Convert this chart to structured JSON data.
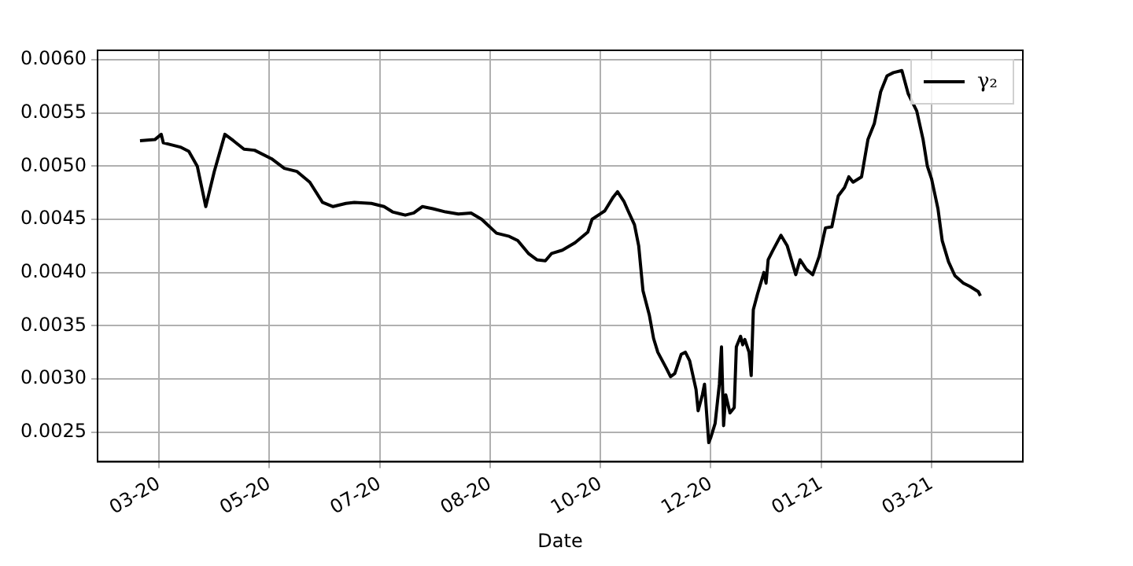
{
  "chart_data": {
    "type": "line",
    "xlabel": "Date",
    "x": [
      "2020-03-16",
      "2020-03-23",
      "2020-03-26",
      "2020-03-27",
      "2020-04-04",
      "2020-04-08",
      "2020-04-12",
      "2020-04-16",
      "2020-04-20",
      "2020-04-25",
      "2020-04-29",
      "2020-05-04",
      "2020-05-09",
      "2020-05-17",
      "2020-05-23",
      "2020-05-29",
      "2020-06-04",
      "2020-06-10",
      "2020-06-15",
      "2020-06-21",
      "2020-06-25",
      "2020-07-03",
      "2020-07-09",
      "2020-07-13",
      "2020-07-19",
      "2020-07-23",
      "2020-07-27",
      "2020-08-01",
      "2020-08-07",
      "2020-08-13",
      "2020-08-19",
      "2020-08-24",
      "2020-08-31",
      "2020-09-06",
      "2020-09-10",
      "2020-09-15",
      "2020-09-19",
      "2020-09-23",
      "2020-09-26",
      "2020-10-01",
      "2020-10-07",
      "2020-10-13",
      "2020-10-15",
      "2020-10-21",
      "2020-10-25",
      "2020-10-27",
      "2020-10-30",
      "2020-11-01",
      "2020-11-04",
      "2020-11-06",
      "2020-11-08",
      "2020-11-11",
      "2020-11-13",
      "2020-11-15",
      "2020-11-19",
      "2020-11-21",
      "2020-11-23",
      "2020-11-26",
      "2020-11-28",
      "2020-11-30",
      "2020-12-03",
      "2020-12-04",
      "2020-12-06",
      "2020-12-07",
      "2020-12-09",
      "2020-12-10",
      "2020-12-12",
      "2020-12-14",
      "2020-12-15",
      "2020-12-16",
      "2020-12-17",
      "2020-12-19",
      "2020-12-21",
      "2020-12-22",
      "2020-12-24",
      "2020-12-25",
      "2020-12-26",
      "2020-12-28",
      "2020-12-29",
      "2020-12-30",
      "2021-01-01",
      "2021-01-04",
      "2021-01-05",
      "2021-01-06",
      "2021-01-08",
      "2021-01-12",
      "2021-01-15",
      "2021-01-19",
      "2021-01-21",
      "2021-01-24",
      "2021-01-27",
      "2021-01-30",
      "2021-02-02",
      "2021-02-05",
      "2021-02-08",
      "2021-02-11",
      "2021-02-13",
      "2021-02-15",
      "2021-02-19",
      "2021-02-22",
      "2021-02-25",
      "2021-02-28",
      "2021-03-03",
      "2021-03-06",
      "2021-03-10",
      "2021-03-13",
      "2021-03-17",
      "2021-03-20",
      "2021-03-22",
      "2021-03-24",
      "2021-03-27",
      "2021-03-29",
      "2021-04-01",
      "2021-04-04",
      "2021-04-08",
      "2021-04-11",
      "2021-04-15",
      "2021-04-16"
    ],
    "series": [
      {
        "name": "γ₂",
        "color": "#000000",
        "values": [
          0.00524,
          0.00525,
          0.0053,
          0.00522,
          0.00518,
          0.00514,
          0.005,
          0.00462,
          0.00495,
          0.0053,
          0.00524,
          0.00516,
          0.00515,
          0.00507,
          0.00498,
          0.00495,
          0.00485,
          0.00466,
          0.00462,
          0.00465,
          0.00466,
          0.00465,
          0.00462,
          0.00457,
          0.00454,
          0.00456,
          0.00462,
          0.0046,
          0.00457,
          0.00455,
          0.00456,
          0.0045,
          0.00437,
          0.00434,
          0.0043,
          0.00418,
          0.00412,
          0.00411,
          0.00418,
          0.00421,
          0.00428,
          0.00438,
          0.0045,
          0.00458,
          0.00471,
          0.00476,
          0.00467,
          0.00458,
          0.00445,
          0.00425,
          0.00383,
          0.0036,
          0.00338,
          0.00325,
          0.0031,
          0.00302,
          0.00305,
          0.00323,
          0.00325,
          0.00317,
          0.0029,
          0.0027,
          0.00285,
          0.00295,
          0.0024,
          0.00245,
          0.00258,
          0.00295,
          0.0033,
          0.00256,
          0.00285,
          0.00268,
          0.00273,
          0.0033,
          0.0034,
          0.00332,
          0.00337,
          0.00325,
          0.00303,
          0.00365,
          0.0038,
          0.004,
          0.0039,
          0.00412,
          0.0042,
          0.00435,
          0.00425,
          0.00398,
          0.00412,
          0.00403,
          0.00398,
          0.00415,
          0.00442,
          0.00443,
          0.00472,
          0.0048,
          0.0049,
          0.00485,
          0.0049,
          0.00525,
          0.0054,
          0.0057,
          0.00585,
          0.00588,
          0.0059,
          0.00568,
          0.00552,
          0.00525,
          0.005,
          0.00488,
          0.0046,
          0.0043,
          0.0041,
          0.00397,
          0.0039,
          0.00387,
          0.00382,
          0.00378
        ]
      }
    ],
    "xlim": [
      "2020-02-25",
      "2021-05-06"
    ],
    "xticks": [
      {
        "value": "2020-03-25",
        "label": "03-20"
      },
      {
        "value": "2020-05-16",
        "label": "05-20"
      },
      {
        "value": "2020-07-07",
        "label": "07-20"
      },
      {
        "value": "2020-08-28",
        "label": "08-20"
      },
      {
        "value": "2020-10-19",
        "label": "10-20"
      },
      {
        "value": "2020-12-10",
        "label": "12-20"
      },
      {
        "value": "2021-01-31",
        "label": "01-21"
      },
      {
        "value": "2021-03-24",
        "label": "03-21"
      }
    ],
    "ylim": [
      0.00222,
      0.00609
    ],
    "yticks": [
      0.0025,
      {
        "value": 0.003,
        "label": "0.0030"
      },
      0.0035,
      {
        "value": 0.004,
        "label": "0.0040"
      },
      0.0045,
      {
        "value": 0.005,
        "label": "0.0050"
      },
      0.0055,
      {
        "value": 0.006,
        "label": "0.0060"
      }
    ],
    "grid": true,
    "legend": "top right",
    "marker": "none",
    "line_style": "solid"
  }
}
